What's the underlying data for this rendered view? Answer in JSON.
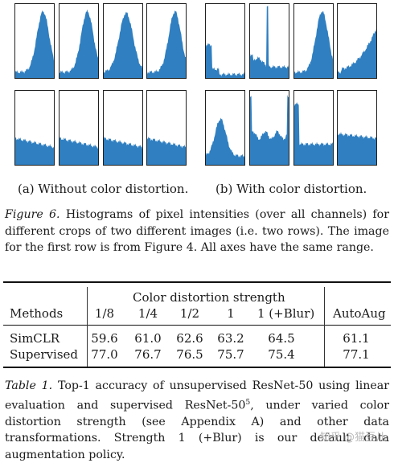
{
  "figure": {
    "panel_a_caption": "(a) Without color distortion.",
    "panel_b_caption": "(b) With color distortion.",
    "caption_label": "Figure 6.",
    "caption_text": "Histograms of pixel intensities (over all channels) for different crops of two different images (i.e. two rows). The image for the first row is from Figure 4. All axes have the same range.",
    "bar_color": "#2f7fc1",
    "histograms": [
      {
        "panel": "a",
        "row": 1,
        "col": 1,
        "shape": "peak-right"
      },
      {
        "panel": "a",
        "row": 1,
        "col": 2,
        "shape": "peak-right"
      },
      {
        "panel": "a",
        "row": 1,
        "col": 3,
        "shape": "peak-mid"
      },
      {
        "panel": "a",
        "row": 1,
        "col": 4,
        "shape": "peak-right"
      },
      {
        "panel": "a",
        "row": 2,
        "col": 1,
        "shape": "flat-decline"
      },
      {
        "panel": "a",
        "row": 2,
        "col": 2,
        "shape": "flat-decline"
      },
      {
        "panel": "a",
        "row": 2,
        "col": 3,
        "shape": "flat-decline"
      },
      {
        "panel": "a",
        "row": 2,
        "col": 4,
        "shape": "flat-decline"
      },
      {
        "panel": "b",
        "row": 1,
        "col": 1,
        "shape": "low-left"
      },
      {
        "panel": "b",
        "row": 1,
        "col": 2,
        "shape": "spike-left"
      },
      {
        "panel": "b",
        "row": 1,
        "col": 3,
        "shape": "peak-right"
      },
      {
        "panel": "b",
        "row": 1,
        "col": 4,
        "shape": "rise-right"
      },
      {
        "panel": "b",
        "row": 2,
        "col": 1,
        "shape": "spike-left-tall"
      },
      {
        "panel": "b",
        "row": 2,
        "col": 2,
        "shape": "spikes-sides"
      },
      {
        "panel": "b",
        "row": 2,
        "col": 3,
        "shape": "tall-left"
      },
      {
        "panel": "b",
        "row": 2,
        "col": 4,
        "shape": "flat"
      }
    ]
  },
  "table": {
    "group_header": "Color distortion strength",
    "methods_header": "Methods",
    "columns": [
      "1/8",
      "1/4",
      "1/2",
      "1",
      "1 (+Blur)",
      "AutoAug"
    ],
    "rows": [
      {
        "method": "SimCLR",
        "values": [
          "59.6",
          "61.0",
          "62.6",
          "63.2",
          "64.5",
          "61.1"
        ]
      },
      {
        "method": "Supervised",
        "values": [
          "77.0",
          "76.7",
          "76.5",
          "75.7",
          "75.4",
          "77.1"
        ]
      }
    ],
    "caption_label": "Table 1.",
    "caption_text_1": "Top-1 accuracy of unsupervised ResNet-50 using linear evaluation and supervised ResNet-50",
    "caption_sup": "5",
    "caption_text_2": ", under varied color distortion strength (see Appendix A) and other data transformations. Strength 1 (+Blur) is our default data augmentation policy."
  },
  "watermark": "知乎 @猫豆儿"
}
